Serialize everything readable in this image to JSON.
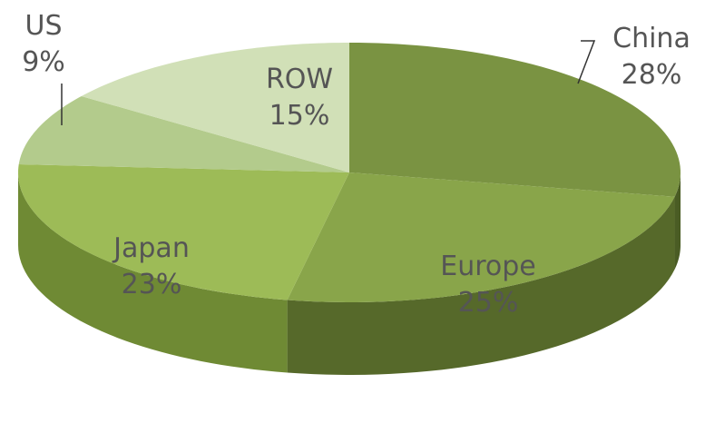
{
  "chart_data": {
    "type": "pie",
    "categories": [
      "China",
      "Europe",
      "Japan",
      "US",
      "ROW"
    ],
    "values": [
      28,
      25,
      23,
      9,
      15
    ],
    "value_labels": [
      "28%",
      "25%",
      "23%",
      "9%",
      "15%"
    ],
    "colors": [
      "#7a9342",
      "#89a54a",
      "#9dbb57",
      "#b3cb8c",
      "#d1e0b7"
    ],
    "side_colors": [
      "#4a5c24",
      "#56692a",
      "#6f8a34",
      "#8aa55a",
      "#a7bd82"
    ]
  }
}
